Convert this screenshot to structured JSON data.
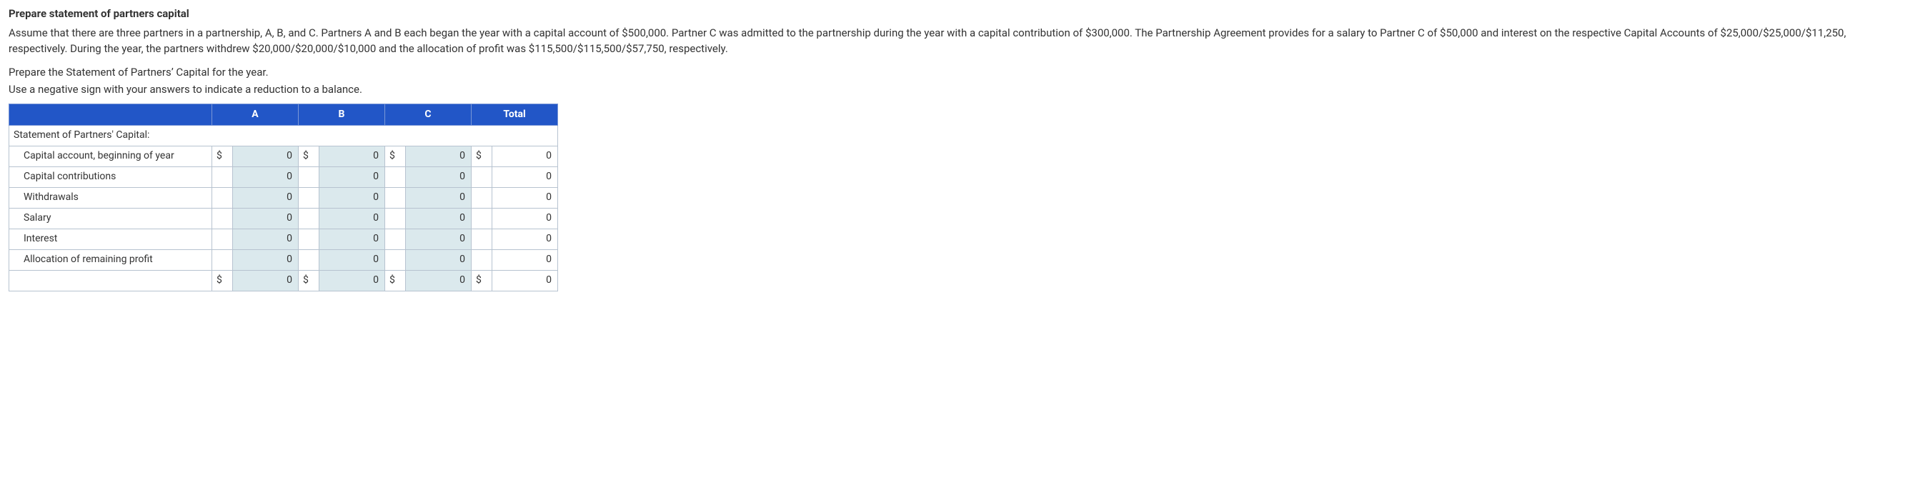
{
  "heading": "Prepare statement of partners capital",
  "paragraph": "Assume that there are three partners in a partnership, A, B, and C. Partners A and B each began the year with a capital account of $500,000. Partner C was admitted to the partnership during the year with a capital contribution of $300,000. The Partnership Agreement provides for a salary to Partner C of $50,000 and interest on the respective Capital Accounts of $25,000/$25,000/$11,250, respectively. During the year, the partners withdrew $20,000/$20,000/$10,000 and the allocation of profit was $115,500/$115,500/$57,750, respectively.",
  "instruction1": "Prepare the Statement of Partners’ Capital for the year.",
  "instruction2": "Use a negative sign with your answers to indicate a reduction to a balance.",
  "table": {
    "headers": {
      "a": "A",
      "b": "B",
      "c": "C",
      "total": "Total"
    },
    "section_title": "Statement of Partners' Capital:",
    "rows": [
      {
        "label": "Capital account, beginning of year",
        "show_dollar": true,
        "a": "0",
        "b": "0",
        "c": "0",
        "total": "0"
      },
      {
        "label": "Capital contributions",
        "show_dollar": false,
        "a": "0",
        "b": "0",
        "c": "0",
        "total": "0"
      },
      {
        "label": "Withdrawals",
        "show_dollar": false,
        "a": "0",
        "b": "0",
        "c": "0",
        "total": "0"
      },
      {
        "label": "Salary",
        "show_dollar": false,
        "a": "0",
        "b": "0",
        "c": "0",
        "total": "0"
      },
      {
        "label": "Interest",
        "show_dollar": false,
        "a": "0",
        "b": "0",
        "c": "0",
        "total": "0"
      },
      {
        "label": "Allocation of remaining profit",
        "show_dollar": false,
        "a": "0",
        "b": "0",
        "c": "0",
        "total": "0"
      }
    ],
    "totals": {
      "label": "",
      "show_dollar": true,
      "a": "0",
      "b": "0",
      "c": "0",
      "total": "0"
    },
    "dollar_sign": "$",
    "colors": {
      "header_bg": "#2256c7",
      "header_text": "#ffffff",
      "input_bg": "#dbe9ed",
      "border": "#b7c3d0"
    }
  }
}
